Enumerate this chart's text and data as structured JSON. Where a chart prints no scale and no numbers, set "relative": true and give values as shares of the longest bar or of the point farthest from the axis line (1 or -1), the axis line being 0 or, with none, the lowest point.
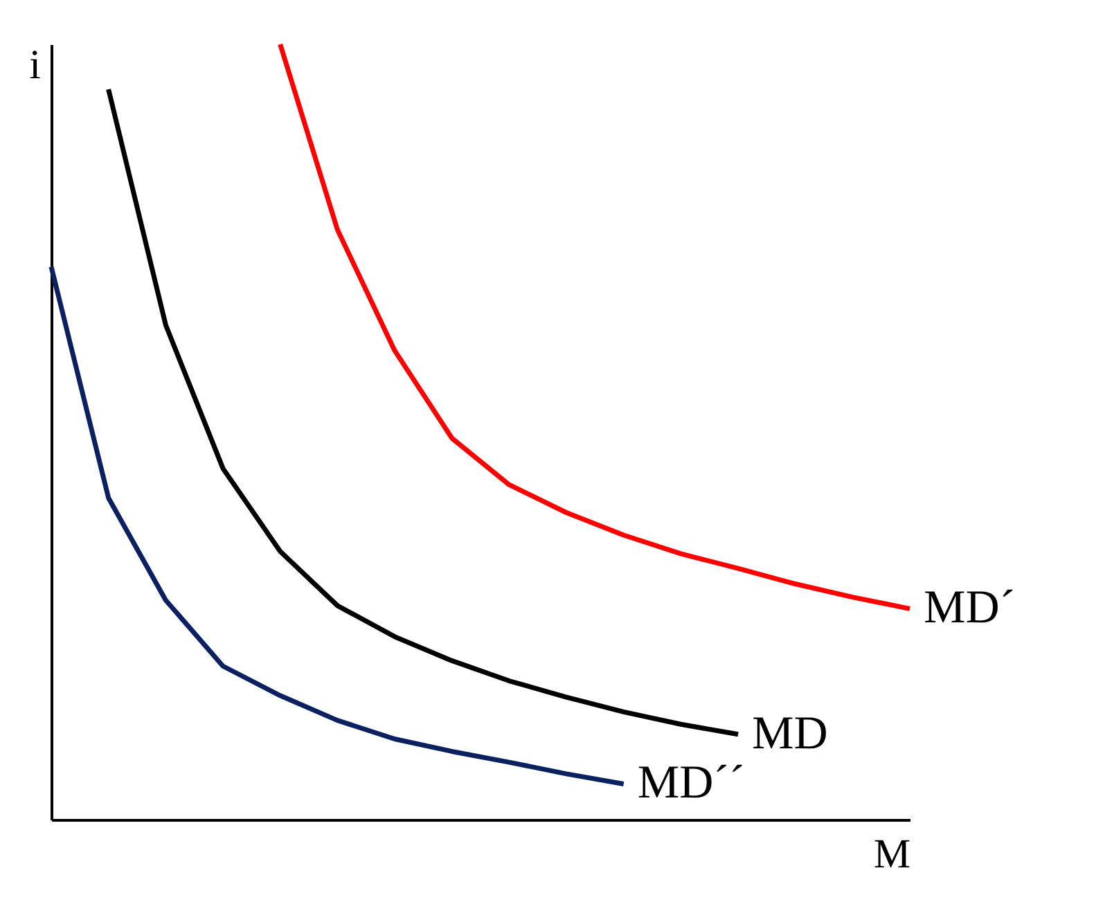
{
  "chart_data": {
    "type": "line",
    "relative": true,
    "xlabel": "M",
    "ylabel": "i",
    "line_style": "solid",
    "categories": [
      null,
      null,
      null,
      null,
      null,
      null,
      null,
      null,
      null,
      null,
      null,
      null,
      null,
      null,
      null,
      null
    ],
    "series": [
      {
        "name": "MD´",
        "color": "#ff0000",
        "values": [
          null,
          null,
          null,
          null,
          1.0,
          0.761,
          0.605,
          0.492,
          0.432,
          0.396,
          0.367,
          0.343,
          0.324,
          0.304,
          0.287,
          0.272
        ]
      },
      {
        "name": "MD",
        "color": "#000000",
        "values": [
          null,
          0.942,
          0.638,
          0.453,
          0.346,
          0.276,
          0.236,
          0.205,
          0.179,
          0.158,
          0.139,
          0.123,
          0.11,
          null,
          null,
          null
        ]
      },
      {
        "name": "MD´´",
        "color": "#0a2060",
        "values": [
          0.713,
          0.415,
          0.283,
          0.198,
          0.16,
          0.128,
          0.104,
          0.088,
          0.074,
          0.059,
          0.046,
          null,
          null,
          null,
          null,
          null
        ]
      }
    ]
  }
}
